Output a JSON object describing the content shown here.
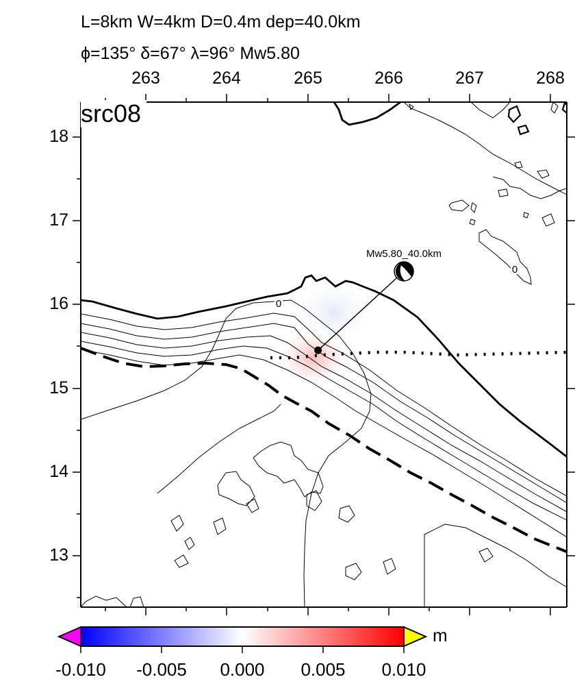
{
  "header": {
    "line1": "L=8km W=4km D=0.4m dep=40.0km",
    "line2": "ϕ=135° δ=67° λ=96° Mw5.80"
  },
  "panel_label": "src08",
  "axes": {
    "x_ticks": [
      "263",
      "264",
      "265",
      "266",
      "267",
      "268"
    ],
    "y_ticks": [
      "18",
      "17",
      "16",
      "15",
      "14",
      "13"
    ],
    "lon_range": [
      262.3,
      268.2
    ],
    "lat_range": [
      12.45,
      18.25
    ]
  },
  "event": {
    "label": "Mw5.80_40.0km",
    "lon": 265.18,
    "lat": 15.4
  },
  "contour_labels": [
    "0",
    "0"
  ],
  "colorbar": {
    "unit": "m",
    "ticks": [
      "-0.010",
      "-0.005",
      "0.000",
      "0.005",
      "0.010"
    ],
    "range": [
      -0.01,
      0.01
    ],
    "colors": {
      "min": "#0000ff",
      "mid": "#ffffff",
      "max": "#ff0000",
      "under": "#ff00ff",
      "over": "#ffff00"
    }
  }
}
